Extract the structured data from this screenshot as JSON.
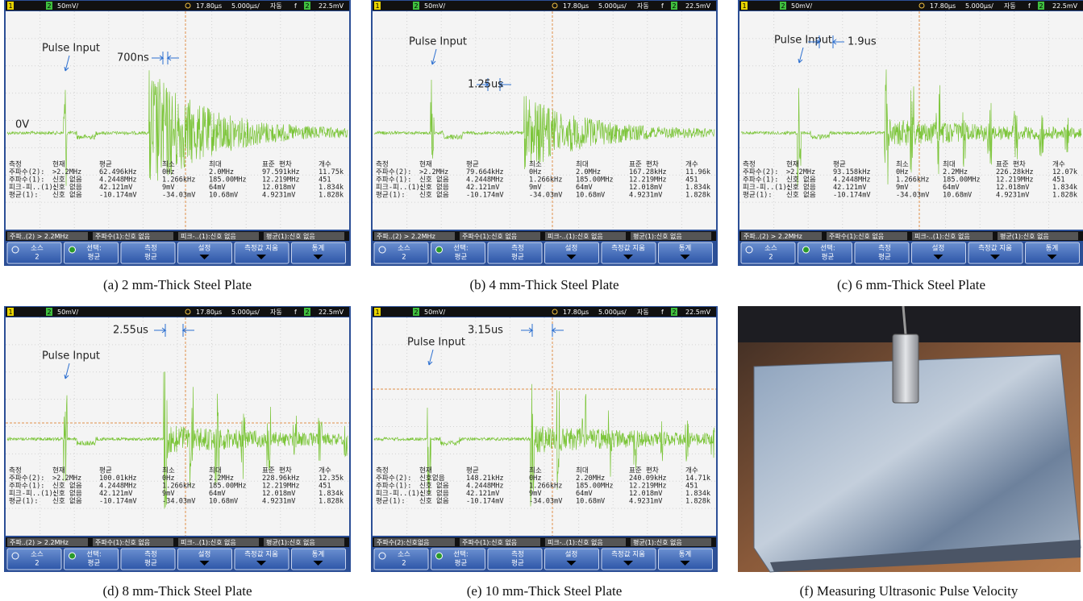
{
  "panels": [
    {
      "header": {
        "ch1": "1",
        "ch2": "2",
        "scale": "50mV/",
        "delay": "17.80µs",
        "timebase": "5.000µs/",
        "mode": "자동",
        "trig": "f",
        "trig_ch": "2",
        "level": "22.5mV"
      },
      "pulse_label": "Pulse Input",
      "time_label": "700ns",
      "zero_label": "0V",
      "measurements": [
        [
          "측정",
          "현재",
          "평균",
          "최소",
          "최대",
          "표준 편차",
          "개수"
        ],
        [
          "주파수(2):",
          ">2.2MHz",
          "62.496kHz",
          "0Hz",
          "2.0MHz",
          "97.591kHz",
          "11.75k"
        ],
        [
          "주파수(1):",
          "신호 없음",
          "4.2448MHz",
          "1.266kHz",
          "185.00MHz",
          "12.219MHz",
          "451"
        ],
        [
          "피크-피..(1):",
          "신호 없음",
          "42.121mV",
          "9mV",
          "64mV",
          "12.018mV",
          "1.834k"
        ],
        [
          "평균(1):",
          "신호 없음",
          "-10.174mV",
          "-34.03mV",
          "10.68mV",
          "4.9231mV",
          "1.828k"
        ]
      ],
      "status": [
        "주파..(2) > 2.2MHz",
        "주파수(1):신호 없음",
        "피크-..(1):신호 없음",
        "평균(1):신호 없음"
      ],
      "softkeys": [
        [
          "소스",
          "2"
        ],
        [
          "선택:",
          "평균"
        ],
        [
          "측정",
          "평균"
        ],
        [
          "설정"
        ],
        [
          "측정값 지움"
        ],
        [
          "통계"
        ]
      ],
      "caption": "(a) 2 mm-Thick Steel Plate"
    },
    {
      "header": {
        "ch1": "1",
        "ch2": "2",
        "scale": "50mV/",
        "delay": "17.80µs",
        "timebase": "5.000µs/",
        "mode": "자동",
        "trig": "f",
        "trig_ch": "2",
        "level": "22.5mV"
      },
      "pulse_label": "Pulse Input",
      "time_label": "1.25us",
      "measurements": [
        [
          "측정",
          "현재",
          "평균",
          "최소",
          "최대",
          "표준 편차",
          "개수"
        ],
        [
          "주파수(2):",
          ">2.2MHz",
          "79.664kHz",
          "0Hz",
          "2.0MHz",
          "167.28kHz",
          "11.96k"
        ],
        [
          "주파수(1):",
          "신호 없음",
          "4.2448MHz",
          "1.266kHz",
          "185.00MHz",
          "12.219MHz",
          "451"
        ],
        [
          "피크-피..(1):",
          "신호 없음",
          "42.121mV",
          "9mV",
          "64mV",
          "12.018mV",
          "1.834k"
        ],
        [
          "평균(1):",
          "신호 없음",
          "-10.174mV",
          "-34.03mV",
          "10.68mV",
          "4.9231mV",
          "1.828k"
        ]
      ],
      "status": [
        "주파..(2) > 2.2MHz",
        "주파수(1):신호 없음",
        "피크-..(1):신호 없음",
        "평균(1):신호 없음"
      ],
      "softkeys": [
        [
          "소스",
          "2"
        ],
        [
          "선택:",
          "평균"
        ],
        [
          "측정",
          "평균"
        ],
        [
          "설정"
        ],
        [
          "측정값 지움"
        ],
        [
          "통계"
        ]
      ],
      "caption": "(b) 4 mm-Thick Steel Plate"
    },
    {
      "header": {
        "ch1": "1",
        "ch2": "2",
        "scale": "50mV/",
        "delay": "17.80µs",
        "timebase": "5.000µs/",
        "mode": "자동",
        "trig": "f",
        "trig_ch": "2",
        "level": "22.5mV"
      },
      "pulse_label": "Pulse Input",
      "time_label": "1.9us",
      "measurements": [
        [
          "측정",
          "현재",
          "평균",
          "최소",
          "최대",
          "표준 편차",
          "개수"
        ],
        [
          "주파수(2):",
          ">2.2MHz",
          "93.158kHz",
          "0Hz",
          "2.2MHz",
          "226.28kHz",
          "12.07k"
        ],
        [
          "주파수(1):",
          "신호 없음",
          "4.2448MHz",
          "1.266kHz",
          "185.00MHz",
          "12.219MHz",
          "451"
        ],
        [
          "피크-피..(1):",
          "신호 없음",
          "42.121mV",
          "9mV",
          "64mV",
          "12.018mV",
          "1.834k"
        ],
        [
          "평균(1):",
          "신호 없음",
          "-10.174mV",
          "-34.03mV",
          "10.68mV",
          "4.9231mV",
          "1.828k"
        ]
      ],
      "status": [
        "주파..(2) > 2.2MHz",
        "주파수(1):신호 없음",
        "피크-..(1):신호 없음",
        "평균(1):신호 없음"
      ],
      "softkeys": [
        [
          "소스",
          "2"
        ],
        [
          "선택:",
          "평균"
        ],
        [
          "측정",
          "평균"
        ],
        [
          "설정"
        ],
        [
          "측정값 지움"
        ],
        [
          "통계"
        ]
      ],
      "caption": "(c) 6 mm-Thick Steel Plate"
    },
    {
      "header": {
        "ch1": "1",
        "ch2": "2",
        "scale": "50mV/",
        "delay": "17.80µs",
        "timebase": "5.000µs/",
        "mode": "자동",
        "trig": "f",
        "trig_ch": "2",
        "level": "22.5mV"
      },
      "pulse_label": "Pulse Input",
      "time_label": "2.55us",
      "measurements": [
        [
          "측정",
          "현재",
          "평균",
          "최소",
          "최대",
          "표준 편차",
          "개수"
        ],
        [
          "주파수(2):",
          ">2.2MHz",
          "100.01kHz",
          "0Hz",
          "2.2MHz",
          "228.96kHz",
          "12.35k"
        ],
        [
          "주파수(1):",
          "신호 없음",
          "4.2448MHz",
          "1.266kHz",
          "185.00MHz",
          "12.219MHz",
          "451"
        ],
        [
          "피크-피..(1):",
          "신호 없음",
          "42.121mV",
          "9mV",
          "64mV",
          "12.018mV",
          "1.834k"
        ],
        [
          "평균(1):",
          "신호 없음",
          "-10.174mV",
          "-34.03mV",
          "10.68mV",
          "4.9231mV",
          "1.828k"
        ]
      ],
      "status": [
        "주파..(2) > 2.2MHz",
        "주파수(1):신호 없음",
        "피크-..(1):신호 없음",
        "평균(1):신호 없음"
      ],
      "softkeys": [
        [
          "소스",
          "2"
        ],
        [
          "선택:",
          "평균"
        ],
        [
          "측정",
          "평균"
        ],
        [
          "설정"
        ],
        [
          "측정값 지움"
        ],
        [
          "통계"
        ]
      ],
      "caption": "(d) 8 mm-Thick Steel Plate"
    },
    {
      "header": {
        "ch1": "1",
        "ch2": "2",
        "scale": "50mV/",
        "delay": "17.80µs",
        "timebase": "5.000µs/",
        "mode": "자동",
        "trig": "f",
        "trig_ch": "2",
        "level": "22.5mV"
      },
      "pulse_label": "Pulse Input",
      "time_label": "3.15us",
      "measurements": [
        [
          "측정",
          "현재",
          "평균",
          "최소",
          "최대",
          "표준 편차",
          "개수"
        ],
        [
          "주파수(2):",
          "신호없음",
          "148.21kHz",
          "0Hz",
          "2.20MHz",
          "240.09kHz",
          "14.71k"
        ],
        [
          "주파수(1):",
          "신호 없음",
          "4.2448MHz",
          "1.266kHz",
          "185.00MHz",
          "12.219MHz",
          "451"
        ],
        [
          "피크-피..(1):",
          "신호 없음",
          "42.121mV",
          "9mV",
          "64mV",
          "12.018mV",
          "1.834k"
        ],
        [
          "평균(1):",
          "신호 없음",
          "-10.174mV",
          "-34.03mV",
          "10.68mV",
          "4.9231mV",
          "1.828k"
        ]
      ],
      "status": [
        "주파수(2):신호없음",
        "주파수(1):신호 없음",
        "피크-..(1):신호 없음",
        "평균(1):신호 없음"
      ],
      "softkeys": [
        [
          "소스",
          "2"
        ],
        [
          "선택:",
          "평균"
        ],
        [
          "측정",
          "평균"
        ],
        [
          "설정"
        ],
        [
          "측정값 지움"
        ],
        [
          "통계"
        ]
      ],
      "caption": "(e) 10 mm-Thick Steel Plate"
    }
  ],
  "photo": {
    "caption": "(f) Measuring Ultrasonic Pulse Velocity"
  }
}
